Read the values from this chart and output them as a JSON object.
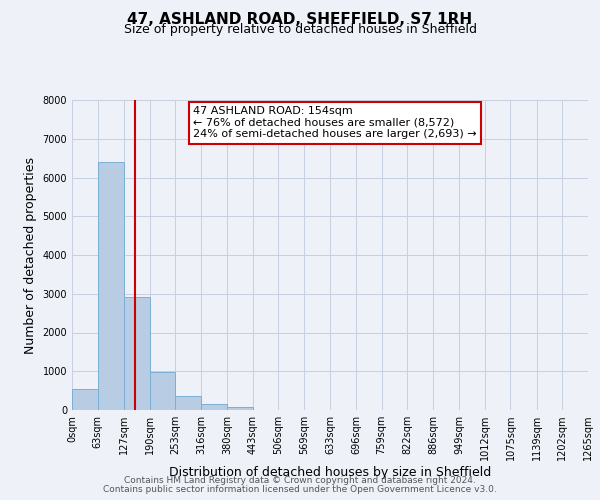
{
  "title": "47, ASHLAND ROAD, SHEFFIELD, S7 1RH",
  "subtitle": "Size of property relative to detached houses in Sheffield",
  "xlabel": "Distribution of detached houses by size in Sheffield",
  "ylabel": "Number of detached properties",
  "bar_edges": [
    0,
    63,
    127,
    190,
    253,
    316,
    380,
    443,
    506,
    569,
    633,
    696,
    759,
    822,
    886,
    949,
    1012,
    1075,
    1139,
    1202,
    1265
  ],
  "bar_heights": [
    550,
    6400,
    2920,
    980,
    360,
    160,
    80,
    0,
    0,
    0,
    0,
    0,
    0,
    0,
    0,
    0,
    0,
    0,
    0,
    0
  ],
  "bar_color": "#b8cce4",
  "bar_edge_color": "#7bafd4",
  "property_line_x": 154,
  "property_line_color": "#cc0000",
  "annotation_line1": "47 ASHLAND ROAD: 154sqm",
  "annotation_line2": "← 76% of detached houses are smaller (8,572)",
  "annotation_line3": "24% of semi-detached houses are larger (2,693) →",
  "annotation_box_color": "#ffffff",
  "annotation_box_edge": "#cc0000",
  "ylim": [
    0,
    8000
  ],
  "yticks": [
    0,
    1000,
    2000,
    3000,
    4000,
    5000,
    6000,
    7000,
    8000
  ],
  "tick_labels": [
    "0sqm",
    "63sqm",
    "127sqm",
    "190sqm",
    "253sqm",
    "316sqm",
    "380sqm",
    "443sqm",
    "506sqm",
    "569sqm",
    "633sqm",
    "696sqm",
    "759sqm",
    "822sqm",
    "886sqm",
    "949sqm",
    "1012sqm",
    "1075sqm",
    "1139sqm",
    "1202sqm",
    "1265sqm"
  ],
  "footer_line1": "Contains HM Land Registry data © Crown copyright and database right 2024.",
  "footer_line2": "Contains public sector information licensed under the Open Government Licence v3.0.",
  "background_color": "#eef2f8",
  "plot_bg_color": "#eef2f8",
  "grid_color": "#c5cfe0",
  "title_fontsize": 11,
  "subtitle_fontsize": 9,
  "axis_label_fontsize": 9,
  "tick_fontsize": 7,
  "footer_fontsize": 6.5,
  "annotation_fontsize": 8
}
